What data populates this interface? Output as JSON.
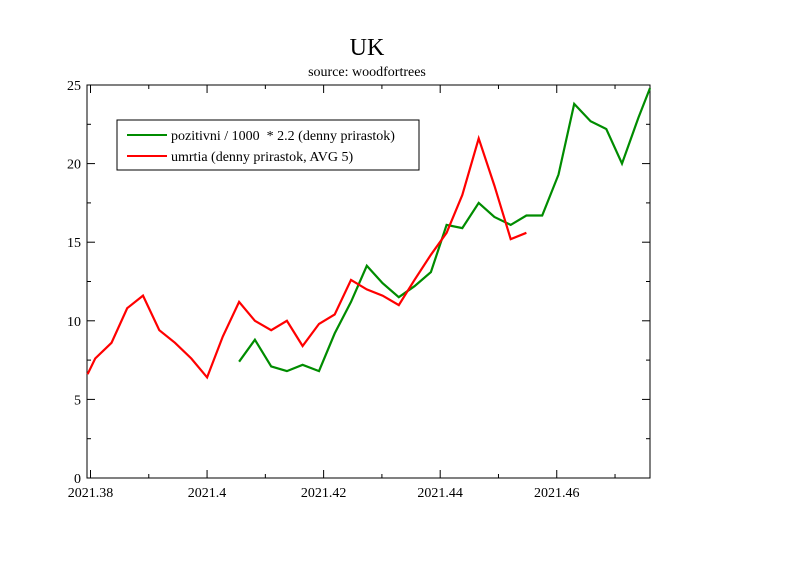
{
  "chart_data": {
    "type": "line",
    "title": "UK",
    "subtitle": "source: woodfortrees",
    "xlabel": "",
    "ylabel": "",
    "xlim": [
      2021.3794,
      2021.476
    ],
    "ylim": [
      0,
      25
    ],
    "x_ticks": [
      2021.38,
      2021.4,
      2021.42,
      2021.44,
      2021.46
    ],
    "x_tick_labels": [
      "2021.38",
      "2021.4",
      "2021.42",
      "2021.44",
      "2021.46"
    ],
    "y_ticks": [
      0,
      5,
      10,
      15,
      20,
      25
    ],
    "y_tick_labels": [
      "0",
      "5",
      "10",
      "15",
      "20",
      "25"
    ],
    "grid": false,
    "legend_position": "top-left",
    "series": [
      {
        "name": "pozitivni / 1000  * 2.2 (denny prirastok)",
        "color": "#008c00",
        "points": [
          [
            2021.4055,
            7.4
          ],
          [
            2021.4082,
            8.8
          ],
          [
            2021.411,
            7.1
          ],
          [
            2021.4137,
            6.8
          ],
          [
            2021.4164,
            7.2
          ],
          [
            2021.4192,
            6.8
          ],
          [
            2021.4219,
            9.2
          ],
          [
            2021.4247,
            11.2
          ],
          [
            2021.4274,
            13.5
          ],
          [
            2021.4301,
            12.4
          ],
          [
            2021.4329,
            11.5
          ],
          [
            2021.4356,
            12.2
          ],
          [
            2021.4384,
            13.1
          ],
          [
            2021.4411,
            16.1
          ],
          [
            2021.4438,
            15.9
          ],
          [
            2021.4466,
            17.5
          ],
          [
            2021.4493,
            16.6
          ],
          [
            2021.4521,
            16.1
          ],
          [
            2021.4548,
            16.7
          ],
          [
            2021.4575,
            16.7
          ],
          [
            2021.4603,
            19.3
          ],
          [
            2021.463,
            23.8
          ],
          [
            2021.4658,
            22.7
          ],
          [
            2021.4685,
            22.2
          ],
          [
            2021.4712,
            20.0
          ],
          [
            2021.474,
            22.9
          ],
          [
            2021.476,
            24.8
          ]
        ]
      },
      {
        "name": "umrtia (denny prirastok, AVG 5)",
        "color": "#ff0000",
        "points": [
          [
            2021.3795,
            6.6
          ],
          [
            2021.3808,
            7.6
          ],
          [
            2021.3836,
            8.6
          ],
          [
            2021.3863,
            10.8
          ],
          [
            2021.389,
            11.6
          ],
          [
            2021.3918,
            9.4
          ],
          [
            2021.3945,
            8.6
          ],
          [
            2021.3973,
            7.6
          ],
          [
            2021.4,
            6.4
          ],
          [
            2021.4027,
            9.0
          ],
          [
            2021.4055,
            11.2
          ],
          [
            2021.4082,
            10.0
          ],
          [
            2021.411,
            9.4
          ],
          [
            2021.4137,
            10.0
          ],
          [
            2021.4164,
            8.4
          ],
          [
            2021.4192,
            9.8
          ],
          [
            2021.4219,
            10.4
          ],
          [
            2021.4247,
            12.6
          ],
          [
            2021.4274,
            12.0
          ],
          [
            2021.4301,
            11.6
          ],
          [
            2021.4329,
            11.0
          ],
          [
            2021.4356,
            12.6
          ],
          [
            2021.4384,
            14.2
          ],
          [
            2021.4411,
            15.6
          ],
          [
            2021.4438,
            18.0
          ],
          [
            2021.4466,
            21.6
          ],
          [
            2021.4493,
            18.6
          ],
          [
            2021.4521,
            15.2
          ],
          [
            2021.4548,
            15.6
          ]
        ]
      }
    ]
  }
}
